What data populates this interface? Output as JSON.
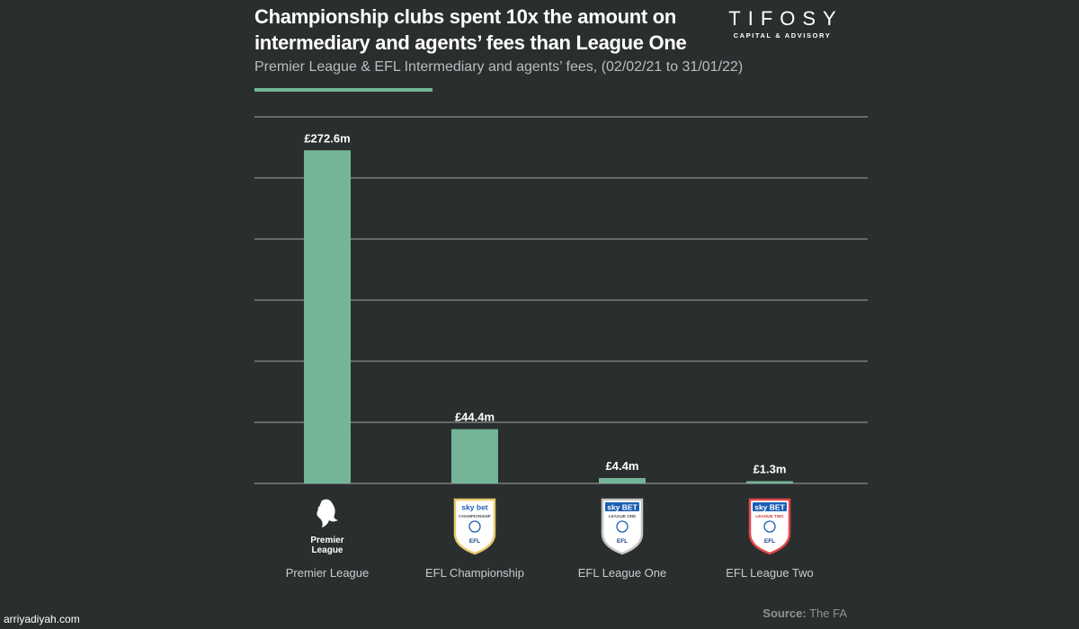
{
  "title": "Championship clubs spent 10x the amount on intermediary and agents’ fees than League One",
  "subtitle": "Premier League & EFL Intermediary and agents’ fees, (02/02/21 to 31/01/22)",
  "brand": {
    "name": "TIFOSY",
    "tagline": "CAPITAL & ADVISORY"
  },
  "source": {
    "label": "Source:",
    "value": "The FA"
  },
  "watermark": "arriyadiyah.com",
  "colors": {
    "bar": "#74b597",
    "background": "#2a2e2f",
    "grid": "#8a8f8f"
  },
  "logos": [
    {
      "icon": "premier-league-lion-icon",
      "text": [
        "Premier",
        "League"
      ]
    },
    {
      "icon": "efl-championship-badge-icon",
      "text": [
        "sky bet",
        "CHAMPIONSHIP",
        "EFL"
      ]
    },
    {
      "icon": "efl-league-one-badge-icon",
      "text": [
        "sky BET",
        "LEAGUE ONE",
        "EFL"
      ]
    },
    {
      "icon": "efl-league-two-badge-icon",
      "text": [
        "sky BET",
        "LEAGUE TWO",
        "EFL"
      ]
    }
  ],
  "chart_data": {
    "type": "bar",
    "categories": [
      "Premier League",
      "EFL Championship",
      "EFL League One",
      "EFL League Two"
    ],
    "values": [
      272.6,
      44.4,
      4.4,
      1.3
    ],
    "value_labels": [
      "£272.6m",
      "£44.4m",
      "£4.4m",
      "£1.3m"
    ],
    "title": "Championship clubs spent 10x the amount on intermediary and agents’ fees than League One",
    "subtitle": "Premier League & EFL Intermediary and agents’ fees, (02/02/21 to 31/01/22)",
    "ylim": [
      0,
      300
    ],
    "grid": true,
    "gridlines": [
      0,
      50,
      100,
      150,
      200,
      250,
      300
    ]
  }
}
